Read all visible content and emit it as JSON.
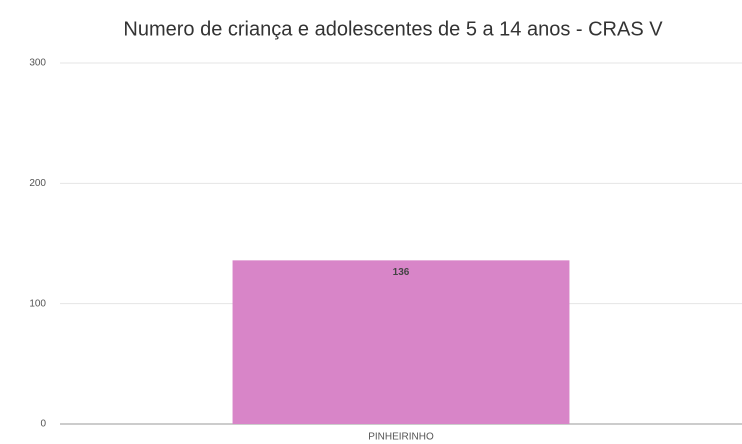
{
  "chart_data": {
    "type": "bar",
    "title": "Numero de criança e adolescentes de 5 a 14 anos - CRAS V",
    "categories": [
      "PINHEIRINHO"
    ],
    "values": [
      136
    ],
    "color": "#d885c8",
    "ylim": [
      0,
      300
    ],
    "yticks": [
      0,
      100,
      200,
      300
    ],
    "grid": true
  }
}
